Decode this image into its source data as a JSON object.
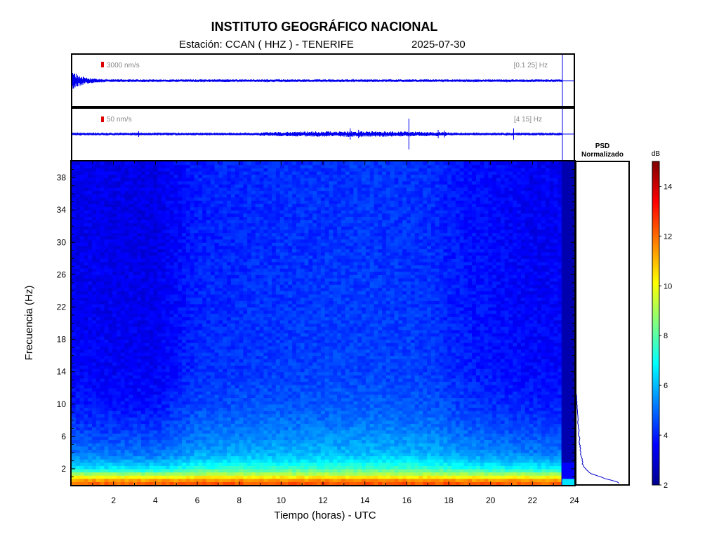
{
  "header": {
    "title": "INSTITUTO GEOGRÁFICO NACIONAL",
    "station": "Estación:  CCAN ( HHZ ) - TENERIFE",
    "date": "2025-07-30"
  },
  "trace1": {
    "scale_label": "3000 nm/s",
    "band_label": "[0.1 25] Hz"
  },
  "trace2": {
    "scale_label": "50 nm/s",
    "band_label": "[4 15] Hz"
  },
  "psd": {
    "title_line1": "PSD",
    "title_line2": "Normalizado"
  },
  "colors": {
    "trace": "#0000ee",
    "scale_bar": "#dd0000",
    "frame": "#000000"
  },
  "chart_data": {
    "type": "heatmap",
    "description": "Daily seismic spectrogram, station CCAN (HHZ)",
    "xlabel": "Tiempo (horas) - UTC",
    "ylabel": "Frecuencia  (Hz)",
    "xlim": [
      0,
      24
    ],
    "ylim": [
      0,
      40
    ],
    "x_ticks": [
      2,
      4,
      6,
      8,
      10,
      12,
      14,
      16,
      18,
      20,
      22,
      24
    ],
    "y_ticks": [
      2,
      6,
      10,
      14,
      18,
      22,
      26,
      30,
      34,
      38
    ],
    "data_end_hour": 23.4,
    "colorbar": {
      "label": "dB",
      "range": [
        2,
        15
      ],
      "ticks": [
        2,
        4,
        6,
        8,
        10,
        12,
        14
      ],
      "colormap": "jet"
    },
    "level_profile_db": [
      {
        "f": 0,
        "db": 12.5
      },
      {
        "f": 0.6,
        "db": 11.5
      },
      {
        "f": 1.2,
        "db": 9.5
      },
      {
        "f": 2,
        "db": 7.2
      },
      {
        "f": 3,
        "db": 6.2
      },
      {
        "f": 4,
        "db": 5.5
      },
      {
        "f": 6,
        "db": 5.0
      },
      {
        "f": 8,
        "db": 4.6
      },
      {
        "f": 10,
        "db": 4.3
      },
      {
        "f": 14,
        "db": 4.0
      },
      {
        "f": 20,
        "db": 3.9
      },
      {
        "f": 30,
        "db": 3.8
      },
      {
        "f": 40,
        "db": 3.8
      }
    ],
    "time_modulation": [
      {
        "t": 0,
        "d": -0.4
      },
      {
        "t": 4,
        "d": -0.5
      },
      {
        "t": 6,
        "d": 0.2
      },
      {
        "t": 10,
        "d": 0.4
      },
      {
        "t": 14,
        "d": 0.5
      },
      {
        "t": 17,
        "d": 0.4
      },
      {
        "t": 19,
        "d": 0.0
      },
      {
        "t": 22,
        "d": -0.3
      },
      {
        "t": 24,
        "d": -0.3
      }
    ],
    "psd_profile": [
      {
        "f": 0.3,
        "v": 0.82
      },
      {
        "f": 0.8,
        "v": 0.55
      },
      {
        "f": 1.5,
        "v": 0.25
      },
      {
        "f": 2.5,
        "v": 0.12
      },
      {
        "f": 4,
        "v": 0.08
      },
      {
        "f": 6,
        "v": 0.05
      },
      {
        "f": 8,
        "v": 0.03
      },
      {
        "f": 10,
        "v": 0.01
      },
      {
        "f": 11,
        "v": 0.0
      }
    ]
  }
}
